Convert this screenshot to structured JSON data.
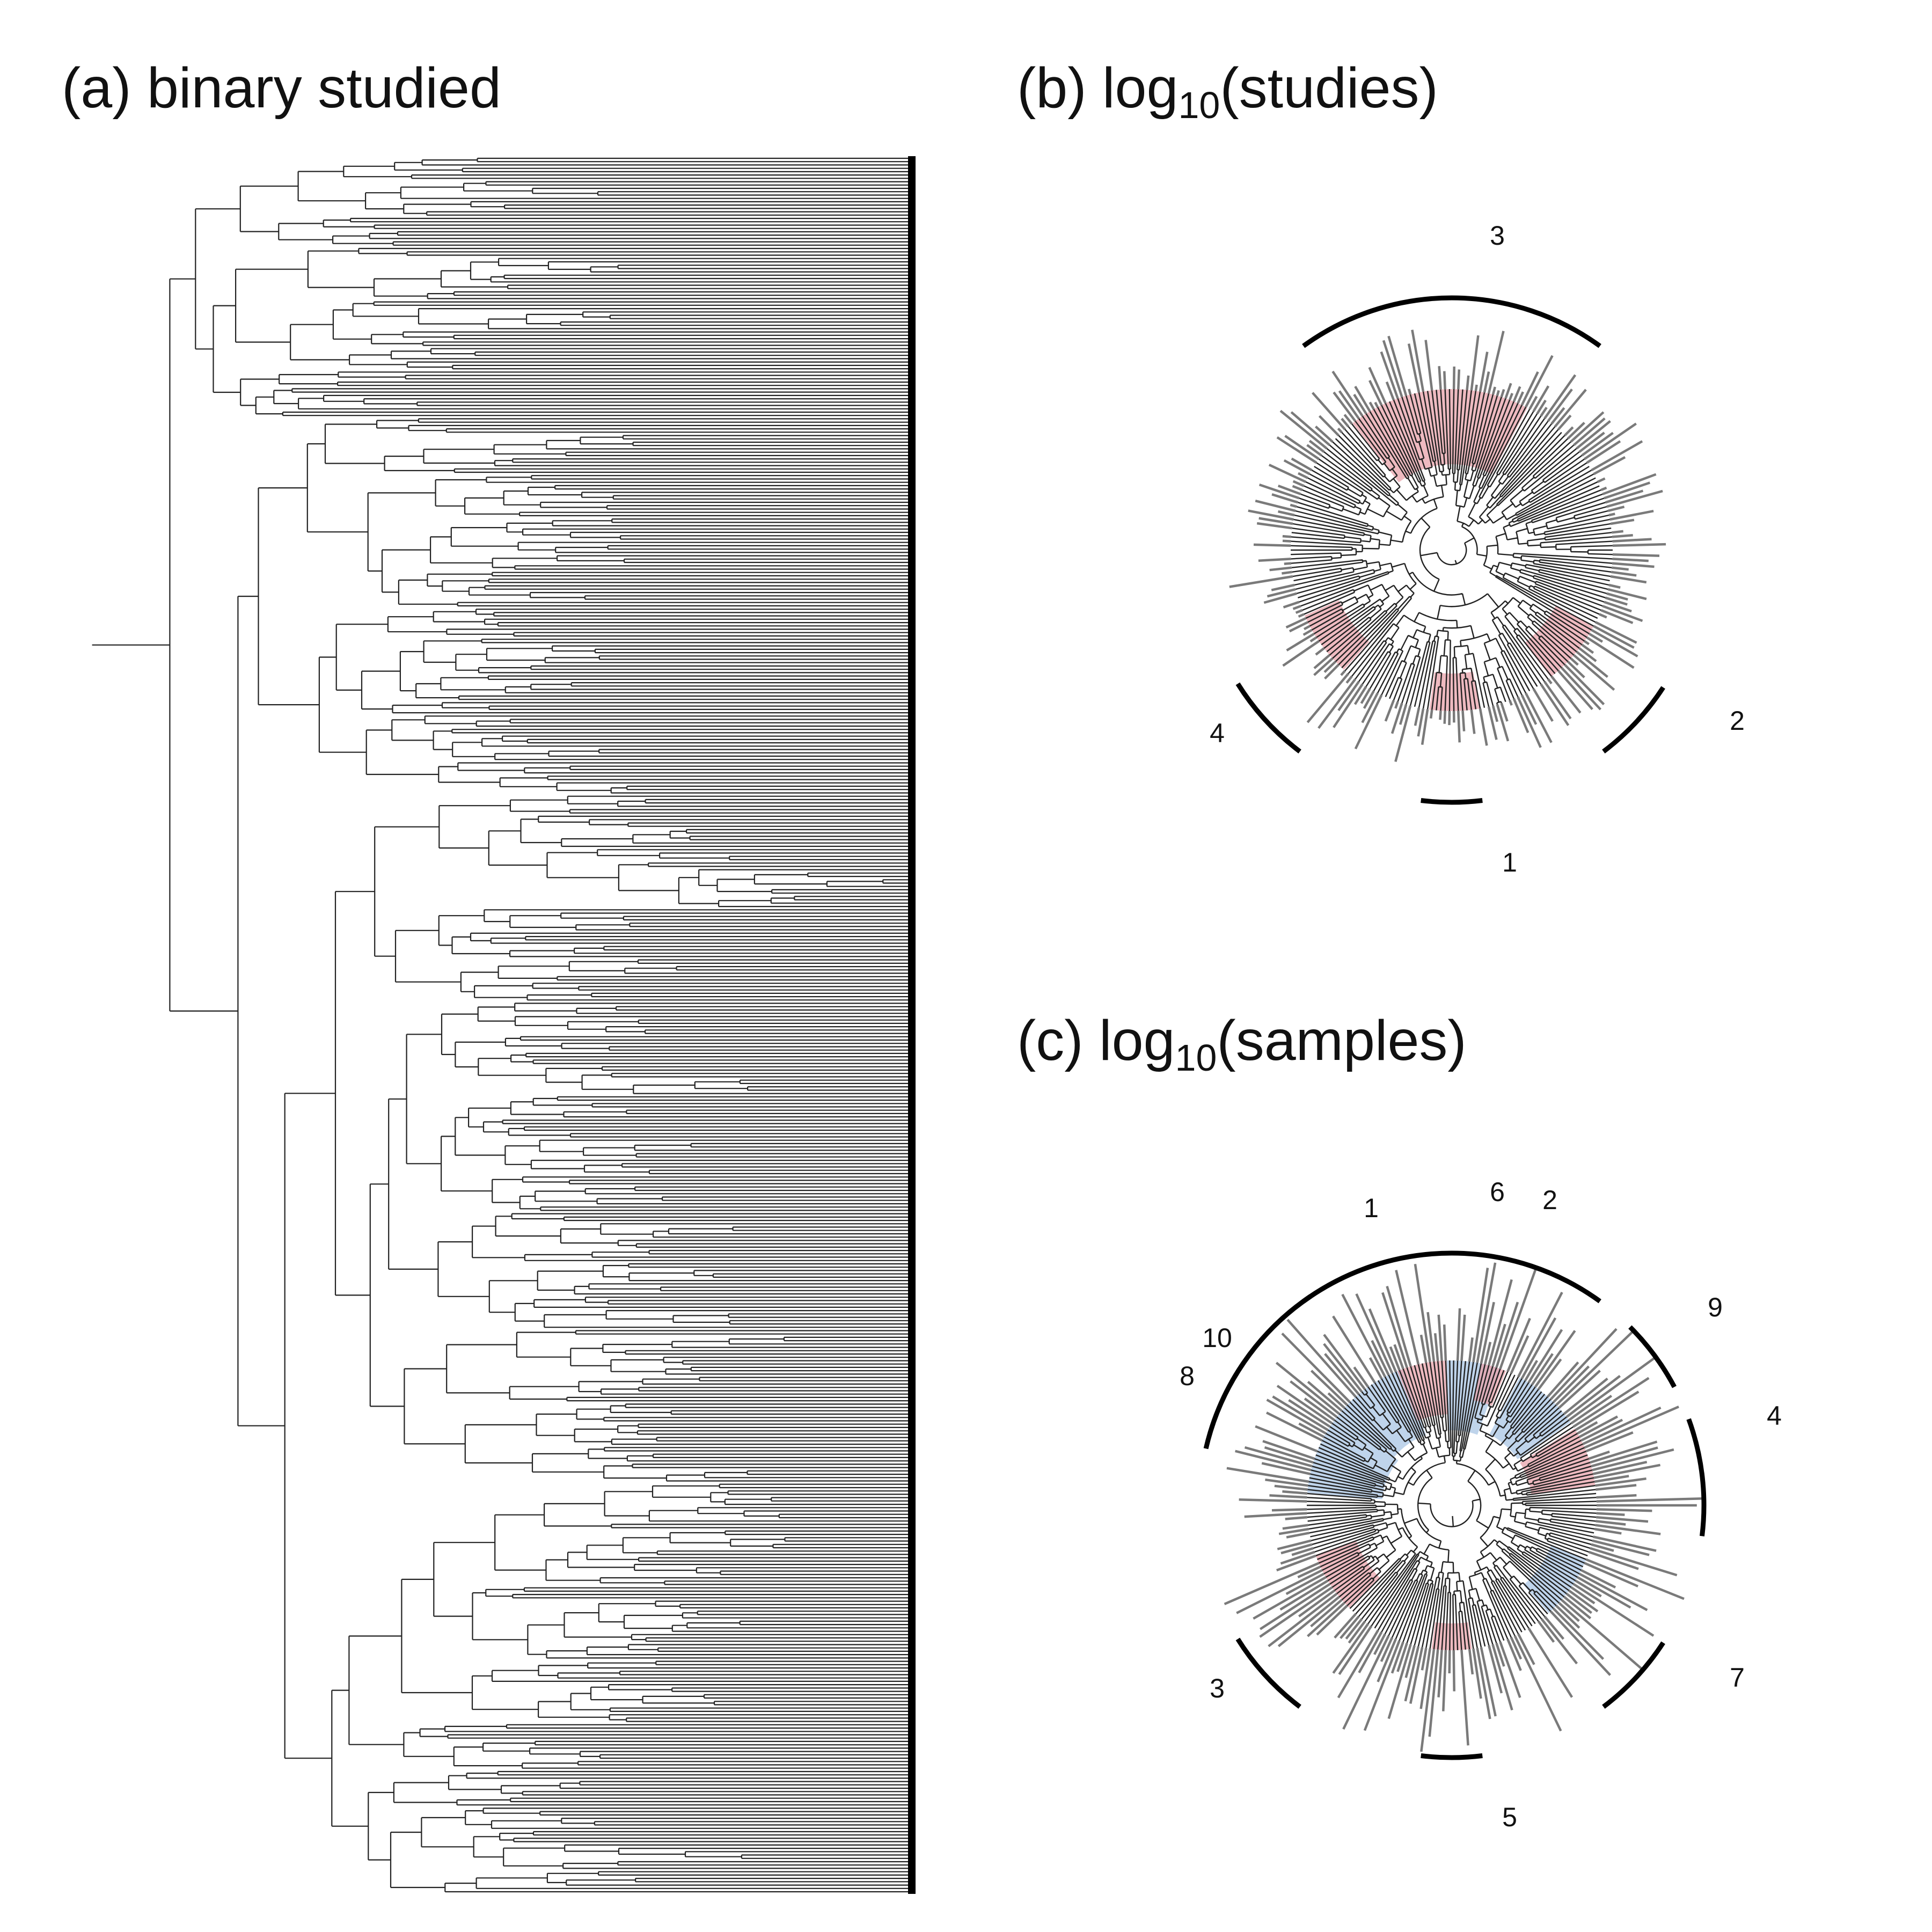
{
  "panels": {
    "a": {
      "title": "(a) binary studied"
    },
    "b": {
      "title_prefix": "(b) log",
      "title_subscript": "10",
      "title_suffix": "(studies)"
    },
    "c": {
      "title_prefix": "(c) log",
      "title_subscript": "10",
      "title_suffix": "(samples)"
    }
  },
  "colors": {
    "branch_dark": "#222222",
    "tip_grey": "#7a7a7a",
    "highlight_red": "#e8a3ab",
    "highlight_blue": "#a9c6e4",
    "arc": "#000000"
  },
  "panel_b_clades": [
    {
      "label": "1",
      "highlight": "red"
    },
    {
      "label": "2",
      "highlight": "red"
    },
    {
      "label": "3",
      "highlight": "red"
    },
    {
      "label": "4",
      "highlight": "red"
    }
  ],
  "panel_c_clades": [
    {
      "label": "1",
      "highlight": "red"
    },
    {
      "label": "2",
      "highlight": "red"
    },
    {
      "label": "3",
      "highlight": "red"
    },
    {
      "label": "4",
      "highlight": "red"
    },
    {
      "label": "5",
      "highlight": "red"
    },
    {
      "label": "6",
      "highlight": "blue"
    },
    {
      "label": "7",
      "highlight": "blue"
    },
    {
      "label": "8",
      "highlight": "blue"
    },
    {
      "label": "9",
      "highlight": "blue"
    },
    {
      "label": "10",
      "highlight": "blue"
    }
  ]
}
